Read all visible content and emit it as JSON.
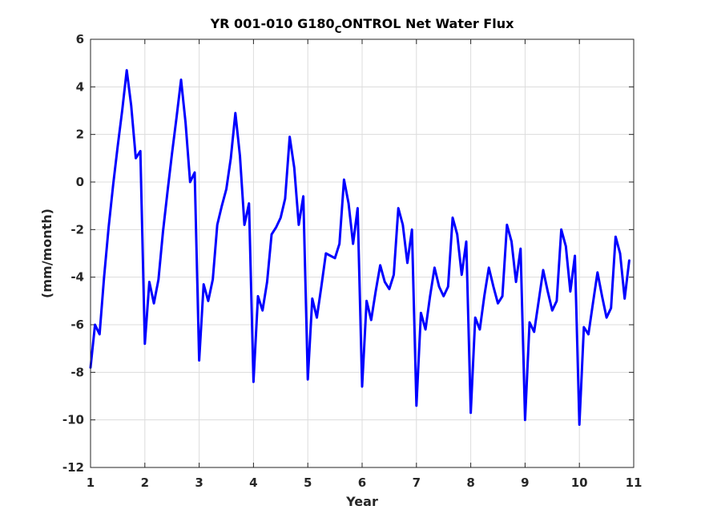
{
  "chart_data": {
    "type": "line",
    "title": "YR 001-010 G180",
    "title_subscript": "C",
    "title_rest": "ONTROL Net Water Flux",
    "xlabel": "Year",
    "ylabel": "(mm/month)",
    "xlim": [
      1,
      11
    ],
    "ylim": [
      -12,
      6
    ],
    "xticks": [
      1,
      2,
      3,
      4,
      5,
      6,
      7,
      8,
      9,
      10,
      11
    ],
    "yticks": [
      -12,
      -10,
      -8,
      -6,
      -4,
      -2,
      0,
      2,
      4,
      6
    ],
    "grid": true,
    "line_color": "#0000ff",
    "series": [
      {
        "x": [
          1.0,
          1.083,
          1.167,
          1.25,
          1.333,
          1.417,
          1.5,
          1.583,
          1.667,
          1.75,
          1.833,
          1.917,
          2.0,
          2.083,
          2.167,
          2.25,
          2.333,
          2.417,
          2.5,
          2.583,
          2.667,
          2.75,
          2.833,
          2.917,
          3.0,
          3.083,
          3.167,
          3.25,
          3.333,
          3.417,
          3.5,
          3.583,
          3.667,
          3.75,
          3.833,
          3.917,
          4.0,
          4.083,
          4.167,
          4.25,
          4.333,
          4.417,
          4.5,
          4.583,
          4.667,
          4.75,
          4.833,
          4.917,
          5.0,
          5.083,
          5.167,
          5.25,
          5.333,
          5.417,
          5.5,
          5.583,
          5.667,
          5.75,
          5.833,
          5.917,
          6.0,
          6.083,
          6.167,
          6.25,
          6.333,
          6.417,
          6.5,
          6.583,
          6.667,
          6.75,
          6.833,
          6.917,
          7.0,
          7.083,
          7.167,
          7.25,
          7.333,
          7.417,
          7.5,
          7.583,
          7.667,
          7.75,
          7.833,
          7.917,
          8.0,
          8.083,
          8.167,
          8.25,
          8.333,
          8.417,
          8.5,
          8.583,
          8.667,
          8.75,
          8.833,
          8.917,
          9.0,
          9.083,
          9.167,
          9.25,
          9.333,
          9.417,
          9.5,
          9.583,
          9.667,
          9.75,
          9.833,
          9.917,
          10.0,
          10.083,
          10.167,
          10.25,
          10.333,
          10.417,
          10.5,
          10.583,
          10.667,
          10.75,
          10.833,
          10.917
        ],
        "y": [
          -7.8,
          -6.0,
          -6.4,
          -4.0,
          -1.9,
          -0.1,
          1.5,
          3.0,
          4.7,
          3.2,
          1.0,
          1.3,
          -6.8,
          -4.2,
          -5.1,
          -4.1,
          -2.1,
          -0.4,
          1.2,
          2.7,
          4.3,
          2.5,
          0.0,
          0.4,
          -7.5,
          -4.3,
          -5.0,
          -4.1,
          -1.8,
          -1.0,
          -0.3,
          1.0,
          2.9,
          1.1,
          -1.8,
          -0.9,
          -8.4,
          -4.8,
          -5.4,
          -4.2,
          -2.2,
          -1.9,
          -1.5,
          -0.7,
          1.9,
          0.6,
          -1.8,
          -0.6,
          -8.3,
          -4.9,
          -5.7,
          -4.4,
          -3.0,
          -3.1,
          -3.2,
          -2.6,
          0.1,
          -0.9,
          -2.6,
          -1.1,
          -8.6,
          -5.0,
          -5.8,
          -4.6,
          -3.5,
          -4.2,
          -4.5,
          -3.9,
          -1.1,
          -1.8,
          -3.4,
          -2.0,
          -9.4,
          -5.5,
          -6.2,
          -4.8,
          -3.6,
          -4.4,
          -4.8,
          -4.4,
          -1.5,
          -2.2,
          -3.9,
          -2.5,
          -9.7,
          -5.7,
          -6.2,
          -4.8,
          -3.6,
          -4.4,
          -5.1,
          -4.8,
          -1.8,
          -2.5,
          -4.2,
          -2.8,
          -10.0,
          -5.9,
          -6.3,
          -5.0,
          -3.7,
          -4.6,
          -5.4,
          -5.0,
          -2.0,
          -2.7,
          -4.6,
          -3.1,
          -10.2,
          -6.1,
          -6.4,
          -5.1,
          -3.8,
          -4.8,
          -5.7,
          -5.3,
          -2.3,
          -3.0,
          -4.9,
          -3.3
        ]
      }
    ]
  }
}
